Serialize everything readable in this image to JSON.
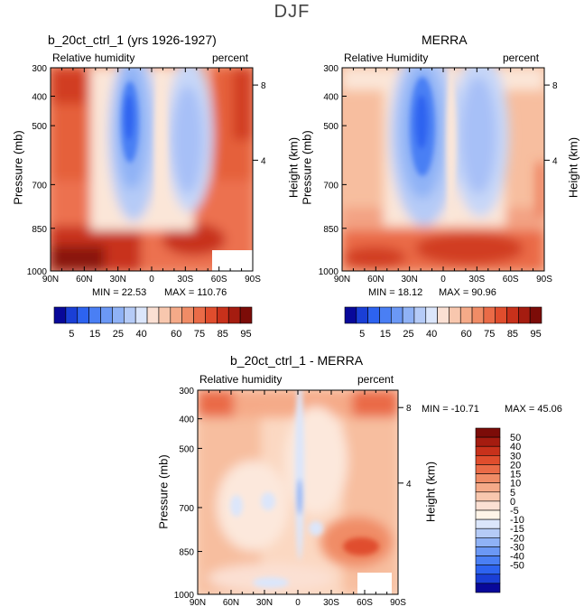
{
  "figure_title": "DJF",
  "colors": {
    "blue_scale": [
      "#08089a",
      "#1a3fd6",
      "#2d63f0",
      "#4a7ff4",
      "#6b98f5",
      "#8fb2f6",
      "#b5cbf7",
      "#dbe6fb"
    ],
    "red_scale": [
      "#fbe0d3",
      "#f8c7ae",
      "#f5aa88",
      "#f08c66",
      "#ea6b47",
      "#e04d2d",
      "#c8311b",
      "#a51c10",
      "#7c0c08"
    ],
    "neutral": "#fff4e8"
  },
  "chart_data": [
    {
      "type": "heatmap",
      "title": "b_20ct_ctrl_1 (yrs 1926-1927)",
      "variable_label": "Relative humidity",
      "units_label": "percent",
      "xlabel": "",
      "ylabel": "Pressure (mb)",
      "y2label": "Height (km)",
      "x_ticks": [
        "90N",
        "60N",
        "30N",
        "0",
        "30S",
        "60S",
        "90S"
      ],
      "y_ticks": [
        "300",
        "400",
        "500",
        "700",
        "850",
        "1000"
      ],
      "y2_ticks": [
        "8",
        "4"
      ],
      "min_label": "MIN = 22.53",
      "max_label": "MAX = 110.76",
      "min": 22.53,
      "max": 110.76,
      "colorbar": {
        "levels": [
          "5",
          "15",
          "25",
          "40",
          "60",
          "75",
          "85",
          "95"
        ]
      }
    },
    {
      "type": "heatmap",
      "title": "MERRA",
      "variable_label": "Relative Humidity",
      "units_label": "percent",
      "xlabel": "",
      "ylabel": "Pressure (mb)",
      "y2label": "Height (km)",
      "x_ticks": [
        "90N",
        "60N",
        "30N",
        "0",
        "30S",
        "60S",
        "90S"
      ],
      "y_ticks": [
        "300",
        "400",
        "500",
        "700",
        "850",
        "1000"
      ],
      "y2_ticks": [
        "8",
        "4"
      ],
      "min_label": "MIN = 18.12",
      "max_label": "MAX = 90.96",
      "min": 18.12,
      "max": 90.96,
      "colorbar": {
        "levels": [
          "5",
          "15",
          "25",
          "40",
          "60",
          "75",
          "85",
          "95"
        ]
      }
    },
    {
      "type": "heatmap",
      "title": "b_20ct_ctrl_1 - MERRA",
      "variable_label": "Relative humidity",
      "units_label": "percent",
      "xlabel": "",
      "ylabel": "Pressure (mb)",
      "y2label": "Height (km)",
      "x_ticks": [
        "90N",
        "60N",
        "30N",
        "0",
        "30S",
        "60S",
        "90S"
      ],
      "y_ticks": [
        "300",
        "400",
        "500",
        "700",
        "850",
        "1000"
      ],
      "y2_ticks": [
        "8",
        "4"
      ],
      "min_label": "MIN = -10.71",
      "max_label": "MAX = 45.06",
      "min": -10.71,
      "max": 45.06,
      "colorbar": {
        "levels": [
          "50",
          "40",
          "30",
          "20",
          "15",
          "10",
          "5",
          "0",
          "-5",
          "-10",
          "-15",
          "-20",
          "-30",
          "-40",
          "-50"
        ]
      }
    }
  ]
}
